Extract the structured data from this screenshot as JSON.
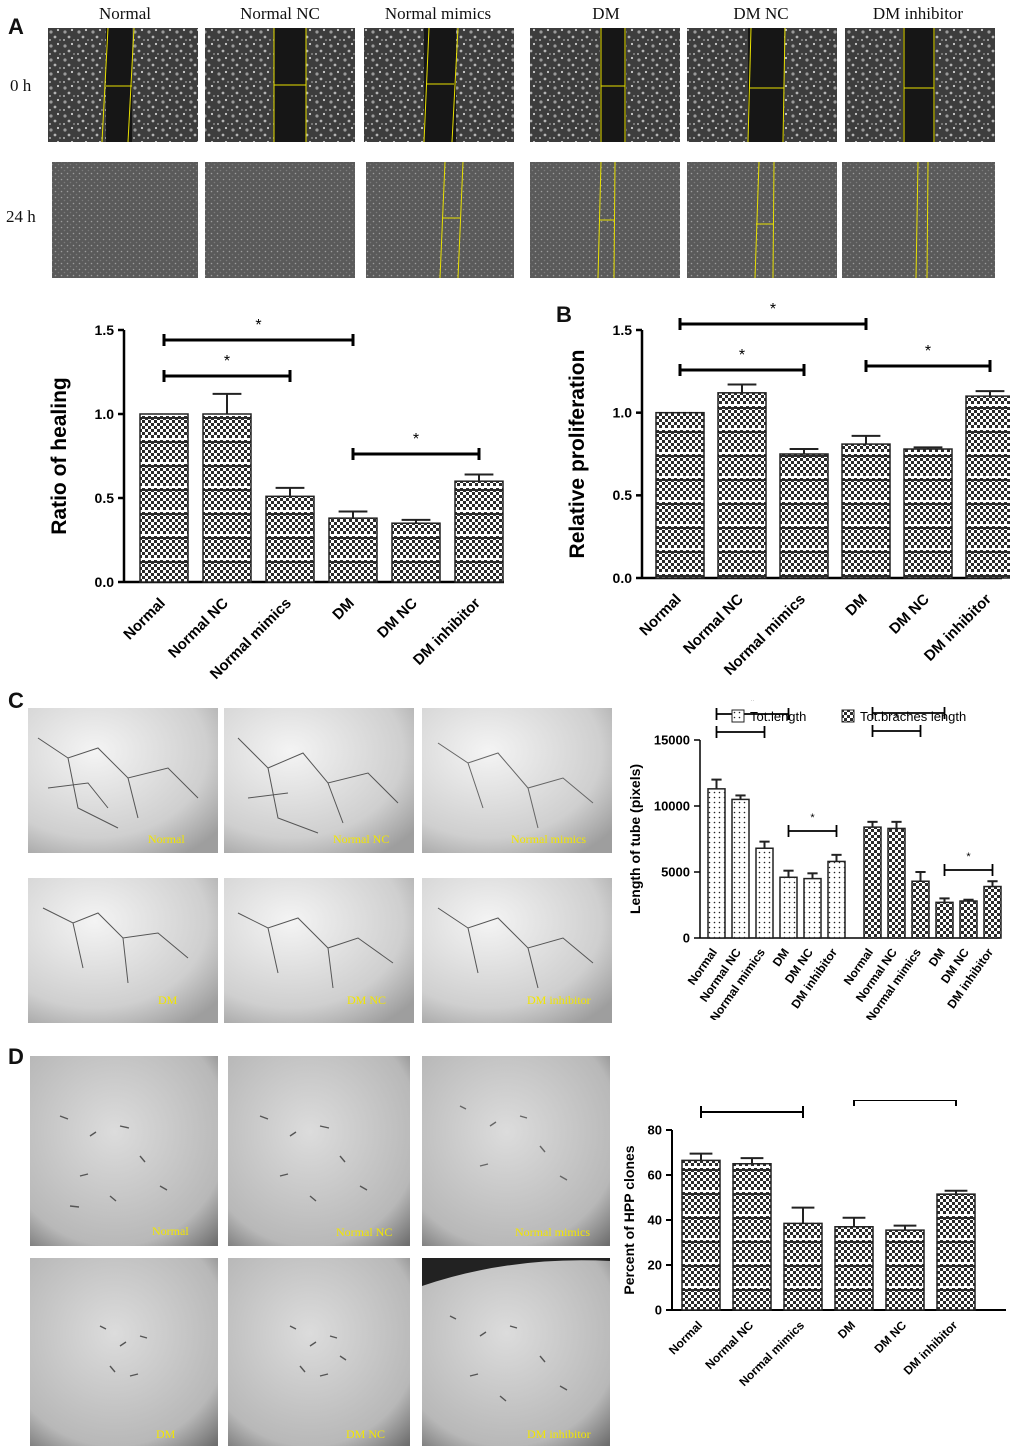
{
  "panels": {
    "a": "A",
    "b": "B",
    "c": "C",
    "d": "D"
  },
  "panelA_micrographs": {
    "column_labels": [
      "Normal",
      "Normal NC",
      "Normal mimics",
      "DM",
      "DM NC",
      "DM inhibitor"
    ],
    "row_labels": [
      "0 h",
      "24 h"
    ]
  },
  "panelC_micrographs": {
    "captions": [
      "Normal",
      "Normal NC",
      "Normal mimics",
      "DM",
      "DM NC",
      "DM inhibitor"
    ]
  },
  "panelD_micrographs": {
    "captions": [
      "Normal",
      "Normal NC",
      "Normal mimics",
      "DM",
      "DM NC",
      "DM inhibitor"
    ]
  },
  "colors": {
    "bar_fill": "#2b2b2b",
    "axis": "#000000",
    "caption": "#f2e600"
  },
  "chart_data": [
    {
      "id": "healing",
      "type": "bar",
      "ylabel": "Ratio of healing",
      "xlabel": "",
      "categories": [
        "Normal",
        "Normal NC",
        "Normal mimics",
        "DM",
        "DM NC",
        "DM inhibitor"
      ],
      "values": [
        1.0,
        1.0,
        0.51,
        0.38,
        0.35,
        0.6
      ],
      "errors": [
        0.0,
        0.12,
        0.05,
        0.04,
        0.02,
        0.04
      ],
      "ylim": [
        0,
        1.5
      ],
      "yticks": [
        "0.0",
        "0.5",
        "1.0",
        "1.5"
      ],
      "significance": [
        {
          "from": 0,
          "to": 2,
          "label": "*"
        },
        {
          "from": 0,
          "to": 3,
          "label": "*"
        },
        {
          "from": 3,
          "to": 5,
          "label": "*"
        }
      ]
    },
    {
      "id": "proliferation",
      "type": "bar",
      "ylabel": "Relative proliferation",
      "xlabel": "",
      "categories": [
        "Normal",
        "Normal NC",
        "Normal mimics",
        "DM",
        "DM NC",
        "DM inhibitor"
      ],
      "values": [
        1.0,
        1.12,
        0.75,
        0.81,
        0.78,
        1.1
      ],
      "errors": [
        0.0,
        0.05,
        0.03,
        0.05,
        0.01,
        0.03
      ],
      "ylim": [
        0,
        1.5
      ],
      "yticks": [
        "0.0",
        "0.5",
        "1.0",
        "1.5"
      ],
      "significance": [
        {
          "from": 0,
          "to": 2,
          "label": "*"
        },
        {
          "from": 0,
          "to": 3,
          "label": "*"
        },
        {
          "from": 3,
          "to": 5,
          "label": "*"
        }
      ]
    },
    {
      "id": "tube",
      "type": "bar",
      "ylabel": "Length of tube (pixels)",
      "xlabel": "",
      "categories": [
        "Normal",
        "Normal NC",
        "Normal mimics",
        "DM",
        "DM NC",
        "DM inhibitor"
      ],
      "series": [
        {
          "name": "Tot.length",
          "values": [
            11300,
            10500,
            6800,
            4600,
            4500,
            5800
          ],
          "errors": [
            700,
            300,
            500,
            500,
            400,
            500
          ]
        },
        {
          "name": "Tot.braches length",
          "values": [
            8400,
            8300,
            4300,
            2700,
            2800,
            3900
          ],
          "errors": [
            400,
            500,
            700,
            300,
            100,
            400
          ]
        }
      ],
      "ylim": [
        0,
        15000
      ],
      "yticks": [
        "0",
        "5000",
        "10000",
        "15000"
      ],
      "legend": "top",
      "significance": [
        {
          "series": 0,
          "from": 0,
          "to": 2,
          "label": "*"
        },
        {
          "series": 0,
          "from": 0,
          "to": 3,
          "label": "*"
        },
        {
          "series": 0,
          "from": 3,
          "to": 5,
          "label": "*"
        },
        {
          "series": 1,
          "from": 0,
          "to": 2,
          "label": "*"
        },
        {
          "series": 1,
          "from": 0,
          "to": 3,
          "label": "*"
        },
        {
          "series": 1,
          "from": 3,
          "to": 5,
          "label": "*"
        }
      ]
    },
    {
      "id": "hpp",
      "type": "bar",
      "ylabel": "Percent of HPP clones",
      "xlabel": "",
      "categories": [
        "Normal",
        "Normal NC",
        "Normal mimics",
        "DM",
        "DM NC",
        "DM inhibitor"
      ],
      "values": [
        66.5,
        65,
        38.5,
        37,
        35.5,
        51.5
      ],
      "errors": [
        3,
        2.5,
        7,
        4,
        2,
        1.5
      ],
      "ylim": [
        0,
        80
      ],
      "yticks": [
        "0",
        "20",
        "40",
        "60",
        "80"
      ],
      "significance": [
        {
          "from": 0,
          "to": 2,
          "label": "*"
        },
        {
          "from": 3,
          "to": 5,
          "label": "*"
        }
      ]
    }
  ]
}
